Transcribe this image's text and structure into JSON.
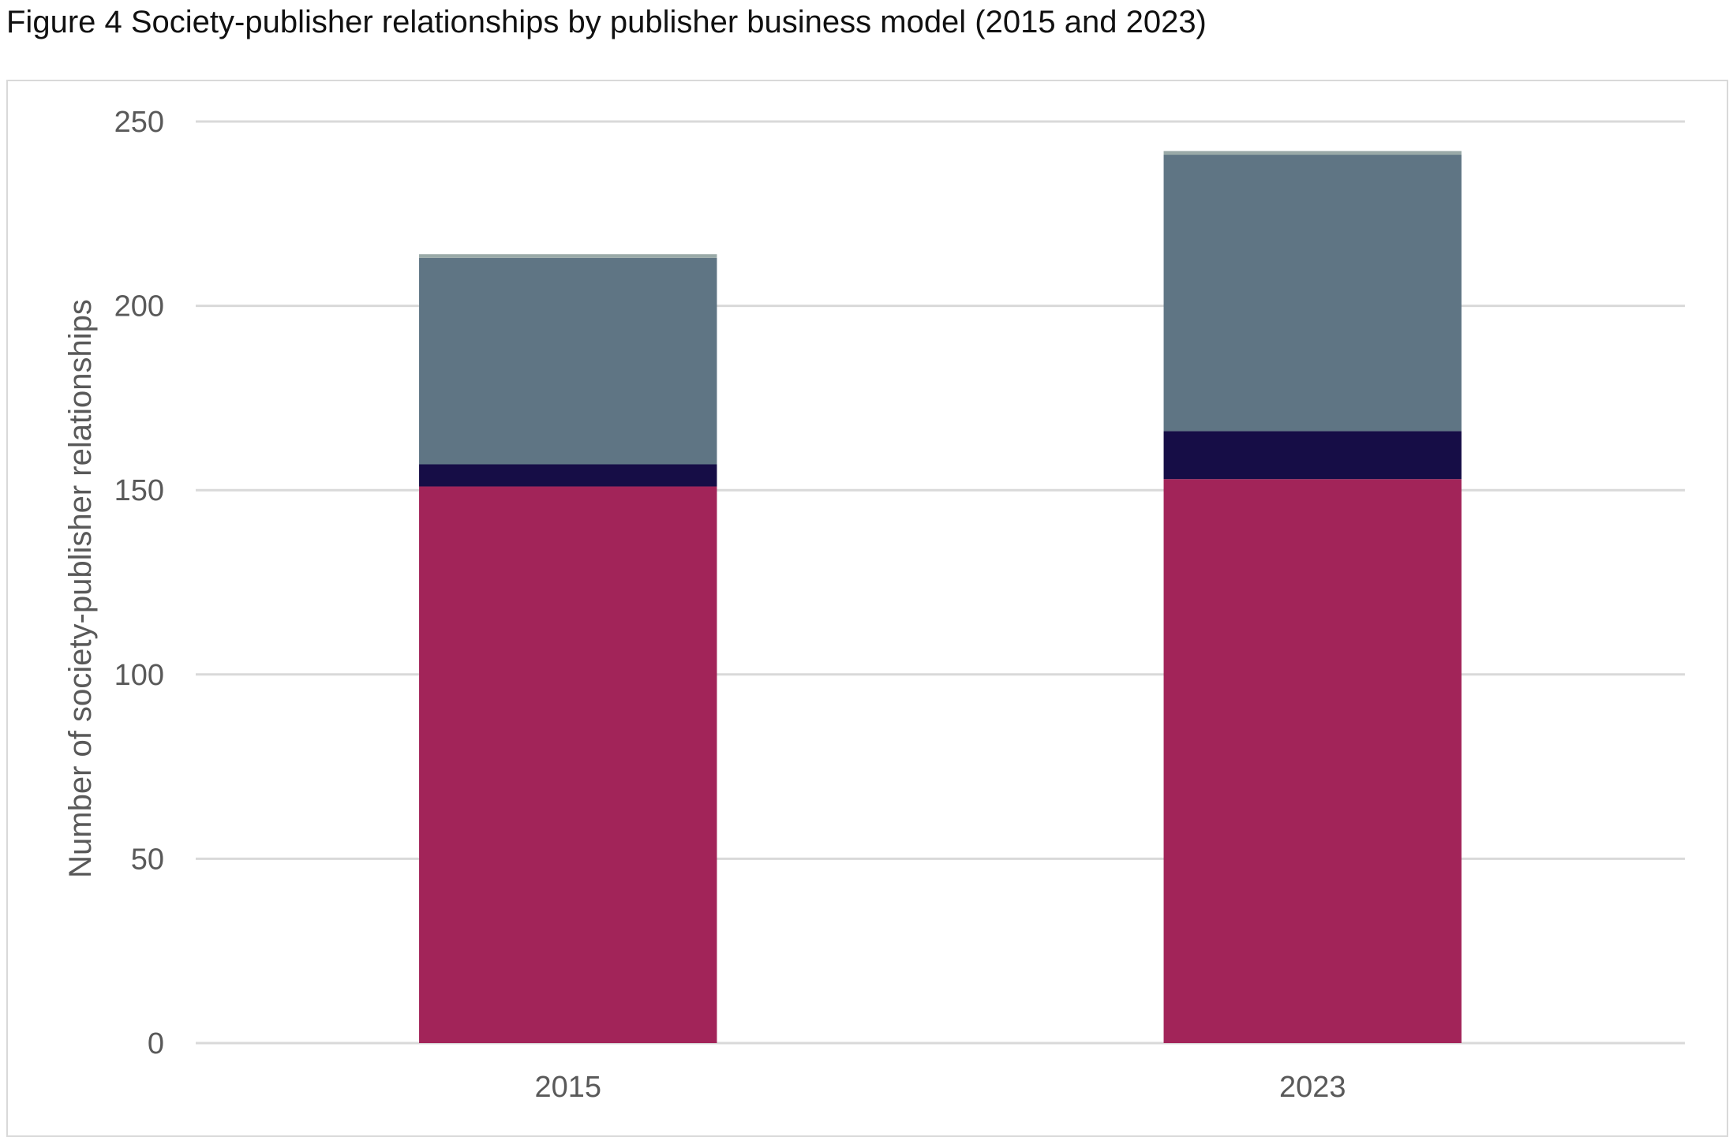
{
  "figure": {
    "title": "Figure 4 Society-publisher relationships by publisher business model (2015 and 2023)"
  },
  "chart_data": {
    "type": "bar",
    "stacked": true,
    "categories": [
      "2015",
      "2023"
    ],
    "series": [
      {
        "values": [
          151,
          153
        ],
        "color": "#a22459"
      },
      {
        "values": [
          6,
          13
        ],
        "color": "#160d46"
      },
      {
        "values": [
          56,
          75
        ],
        "color": "#5f7584"
      },
      {
        "values": [
          1,
          1
        ],
        "color": "#9aaaa8"
      }
    ],
    "title": "",
    "xlabel": "",
    "ylabel": "Number of society-publisher relationships",
    "ylim": [
      0,
      250
    ],
    "yticks": [
      "0",
      "50",
      "100",
      "150",
      "200",
      "250"
    ],
    "grid": true,
    "gridline_color": "#d9d9d9",
    "tick_label_color": "#595959"
  }
}
